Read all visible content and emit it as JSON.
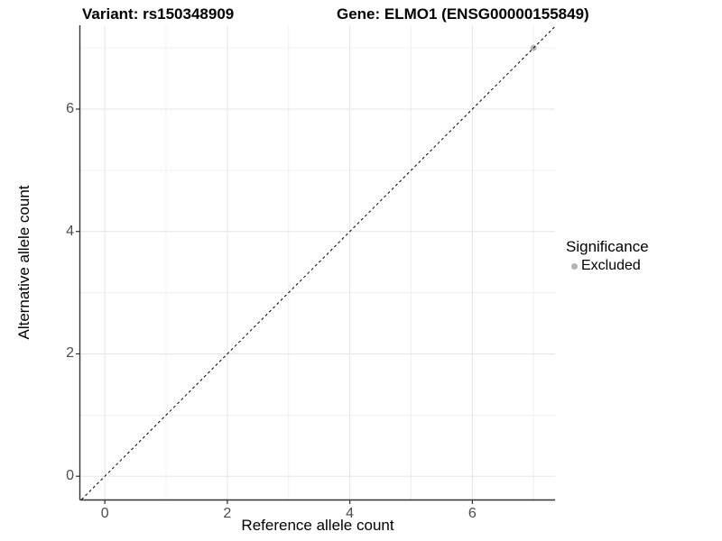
{
  "chart_data": {
    "type": "scatter",
    "title_left": "Variant: rs150348909",
    "title_right": "Gene: ELMO1 (ENSG00000155849)",
    "xlabel": "Reference allele count",
    "ylabel": "Alternative allele count",
    "xlim": [
      -0.4,
      7.35
    ],
    "ylim": [
      -0.38,
      7.37
    ],
    "x_ticks": [
      0,
      2,
      4,
      6
    ],
    "y_ticks": [
      0,
      2,
      4,
      6
    ],
    "minor_gridlines_x": [
      1,
      3,
      5,
      7
    ],
    "minor_gridlines_y": [
      1,
      3,
      5,
      7
    ],
    "grid": true,
    "identity_line": {
      "equation": "y = x",
      "style": "dashed",
      "color": "#000000"
    },
    "series": [
      {
        "name": "Excluded",
        "color": "#b3b3b3",
        "points": [
          {
            "x": 7,
            "y": 7
          }
        ]
      }
    ],
    "legend": {
      "title": "Significance",
      "position": "right",
      "entries": [
        {
          "label": "Excluded",
          "color": "#b3b3b3"
        }
      ]
    },
    "colors": {
      "background": "#ffffff",
      "axis_line": "#333333",
      "tick_text": "#4d4d4d",
      "grid_major": "#e5e5e5",
      "grid_minor": "#f0f0f0",
      "point": "#b8b8b8"
    }
  }
}
